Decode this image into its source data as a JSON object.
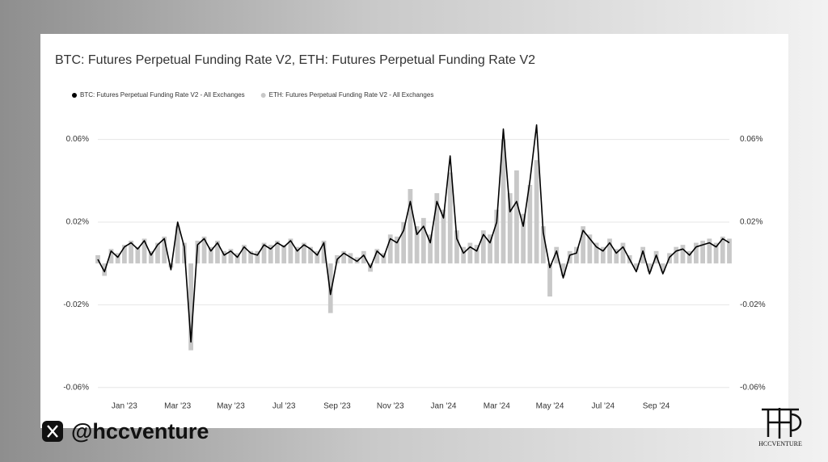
{
  "chart_data": {
    "type": "bar-line",
    "title": "BTC: Futures Perpetual Funding Rate V2, ETH: Futures Perpetual Funding Rate V2",
    "categories": [
      null,
      null,
      null,
      null,
      "Jan '23",
      null,
      null,
      null,
      null,
      null,
      null,
      null,
      "Mar '23",
      null,
      null,
      null,
      null,
      null,
      null,
      null,
      "May '23",
      null,
      null,
      null,
      null,
      null,
      null,
      null,
      "Jul '23",
      null,
      null,
      null,
      null,
      null,
      null,
      null,
      "Sep '23",
      null,
      null,
      null,
      null,
      null,
      null,
      null,
      "Nov '23",
      null,
      null,
      null,
      null,
      null,
      null,
      null,
      "Jan '24",
      null,
      null,
      null,
      null,
      null,
      null,
      null,
      "Mar '24",
      null,
      null,
      null,
      null,
      null,
      null,
      null,
      "May '24",
      null,
      null,
      null,
      null,
      null,
      null,
      null,
      "Jul '24",
      null,
      null,
      null,
      null,
      null,
      null,
      null,
      "Sep '24",
      null,
      null,
      null,
      null,
      null,
      null,
      null,
      null,
      null,
      null,
      null
    ],
    "series": [
      {
        "name": "BTC: Futures Perpetual Funding Rate V2 - All Exchanges",
        "color": "#000000",
        "mark": "line",
        "values": [
          0.002,
          -0.004,
          0.006,
          0.003,
          0.008,
          0.01,
          0.007,
          0.011,
          0.004,
          0.009,
          0.012,
          -0.003,
          0.02,
          0.008,
          -0.038,
          0.009,
          0.012,
          0.006,
          0.01,
          0.004,
          0.006,
          0.003,
          0.008,
          0.005,
          0.004,
          0.009,
          0.007,
          0.01,
          0.008,
          0.011,
          0.006,
          0.009,
          0.007,
          0.004,
          0.01,
          -0.015,
          0.002,
          0.005,
          0.003,
          0.001,
          0.004,
          -0.002,
          0.006,
          0.003,
          0.012,
          0.01,
          0.016,
          0.03,
          0.014,
          0.018,
          0.01,
          0.03,
          0.022,
          0.052,
          0.012,
          0.005,
          0.008,
          0.006,
          0.014,
          0.01,
          0.02,
          0.065,
          0.025,
          0.03,
          0.018,
          0.04,
          0.067,
          0.015,
          -0.002,
          0.006,
          -0.007,
          0.004,
          0.005,
          0.016,
          0.012,
          0.008,
          0.006,
          0.01,
          0.005,
          0.008,
          0.002,
          -0.004,
          0.006,
          -0.005,
          0.004,
          -0.005,
          0.003,
          0.006,
          0.007,
          0.004,
          0.008,
          0.009,
          0.01,
          0.008,
          0.012,
          0.01
        ]
      },
      {
        "name": "ETH: Futures Perpetual Funding Rate V2 - All Exchanges",
        "color": "#c8c8c8",
        "mark": "bar",
        "values": [
          0.004,
          -0.006,
          0.007,
          0.005,
          0.009,
          0.011,
          0.008,
          0.012,
          0.006,
          0.01,
          0.013,
          -0.002,
          0.018,
          0.01,
          -0.042,
          0.011,
          0.013,
          0.008,
          0.011,
          0.006,
          0.007,
          0.005,
          0.009,
          0.006,
          0.006,
          0.01,
          0.009,
          0.011,
          0.009,
          0.012,
          0.008,
          0.01,
          0.008,
          0.006,
          0.011,
          -0.024,
          0.004,
          0.006,
          0.005,
          0.003,
          0.006,
          -0.004,
          0.007,
          0.005,
          0.014,
          0.013,
          0.02,
          0.036,
          0.018,
          0.022,
          0.014,
          0.034,
          0.026,
          0.044,
          0.016,
          0.008,
          0.01,
          0.009,
          0.016,
          0.014,
          0.026,
          0.06,
          0.034,
          0.045,
          0.024,
          0.038,
          0.05,
          0.018,
          -0.016,
          0.008,
          -0.006,
          0.006,
          0.008,
          0.018,
          0.014,
          0.01,
          0.008,
          0.012,
          0.007,
          0.01,
          0.004,
          -0.003,
          0.008,
          -0.004,
          0.006,
          -0.004,
          0.005,
          0.008,
          0.009,
          0.006,
          0.01,
          0.011,
          0.012,
          0.01,
          0.013,
          0.012
        ]
      }
    ],
    "ylim": [
      -0.064,
      0.07
    ],
    "yticks": [
      {
        "value": -0.06,
        "label": "-0.06%"
      },
      {
        "value": -0.02,
        "label": "-0.02%"
      },
      {
        "value": 0.02,
        "label": "0.02%"
      },
      {
        "value": 0.06,
        "label": "0.06%"
      }
    ],
    "grid": true,
    "legend": "top-left",
    "right_axis_mirror": true
  },
  "branding": {
    "handle": "@hccventure",
    "logo_text": "HCCVENTURE"
  }
}
